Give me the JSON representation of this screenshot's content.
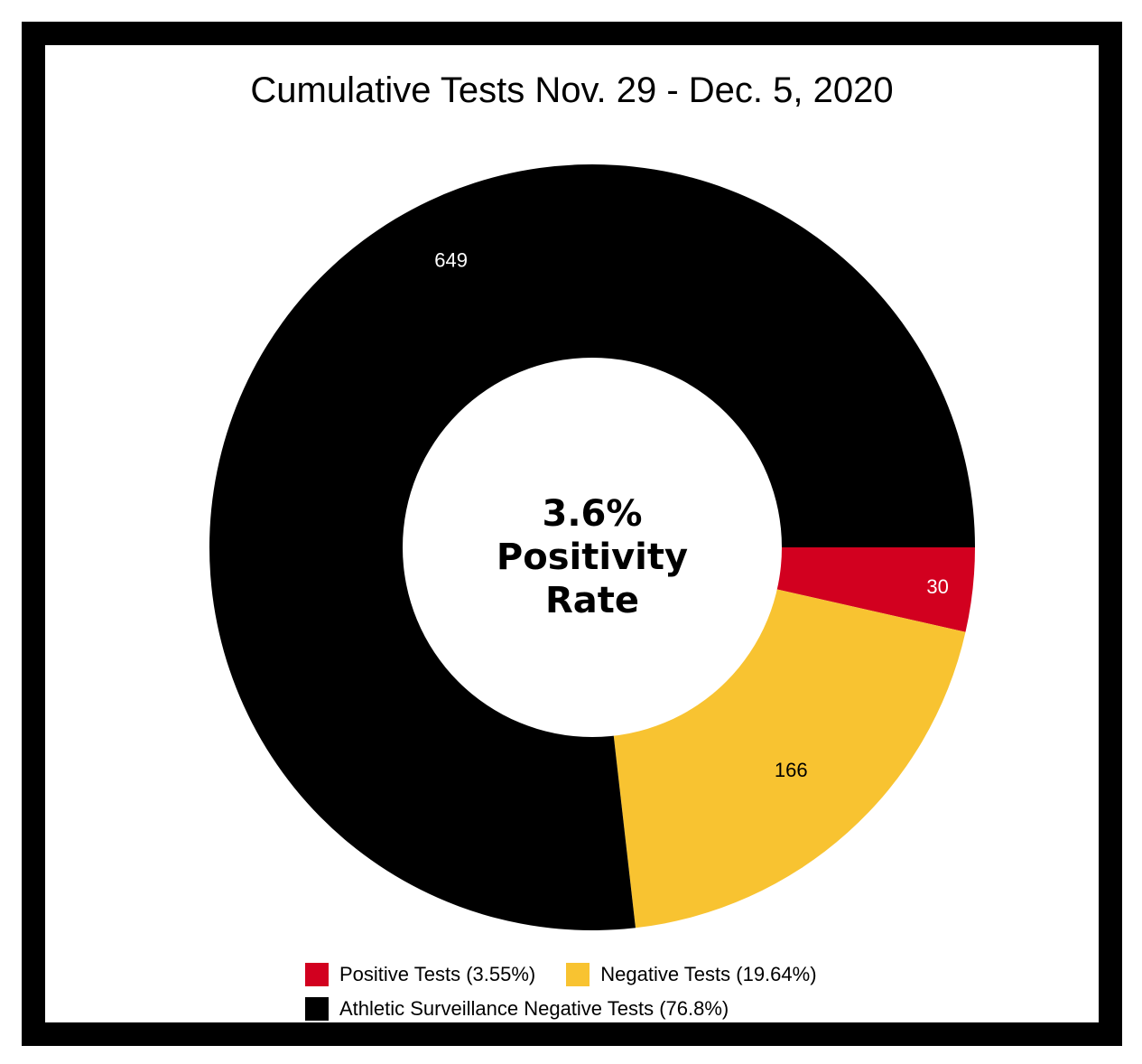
{
  "chart_data": {
    "type": "pie",
    "title": "Cumulative Tests Nov. 29 - Dec. 5, 2020",
    "center_text": [
      "3.6%",
      "Positivity",
      "Rate"
    ],
    "slices": [
      {
        "label": "Positive Tests (3.55%)",
        "value": 30,
        "color": "#d2001f",
        "label_color": "#ffffff"
      },
      {
        "label": "Negative Tests (19.64%)",
        "value": 166,
        "color": "#f8c331",
        "label_color": "#000000"
      },
      {
        "label": "Athletic Surveillance Negative Tests (76.8%)",
        "value": 649,
        "color": "#000000",
        "label_color": "#ffffff"
      }
    ],
    "legend_placement": "bottom"
  }
}
